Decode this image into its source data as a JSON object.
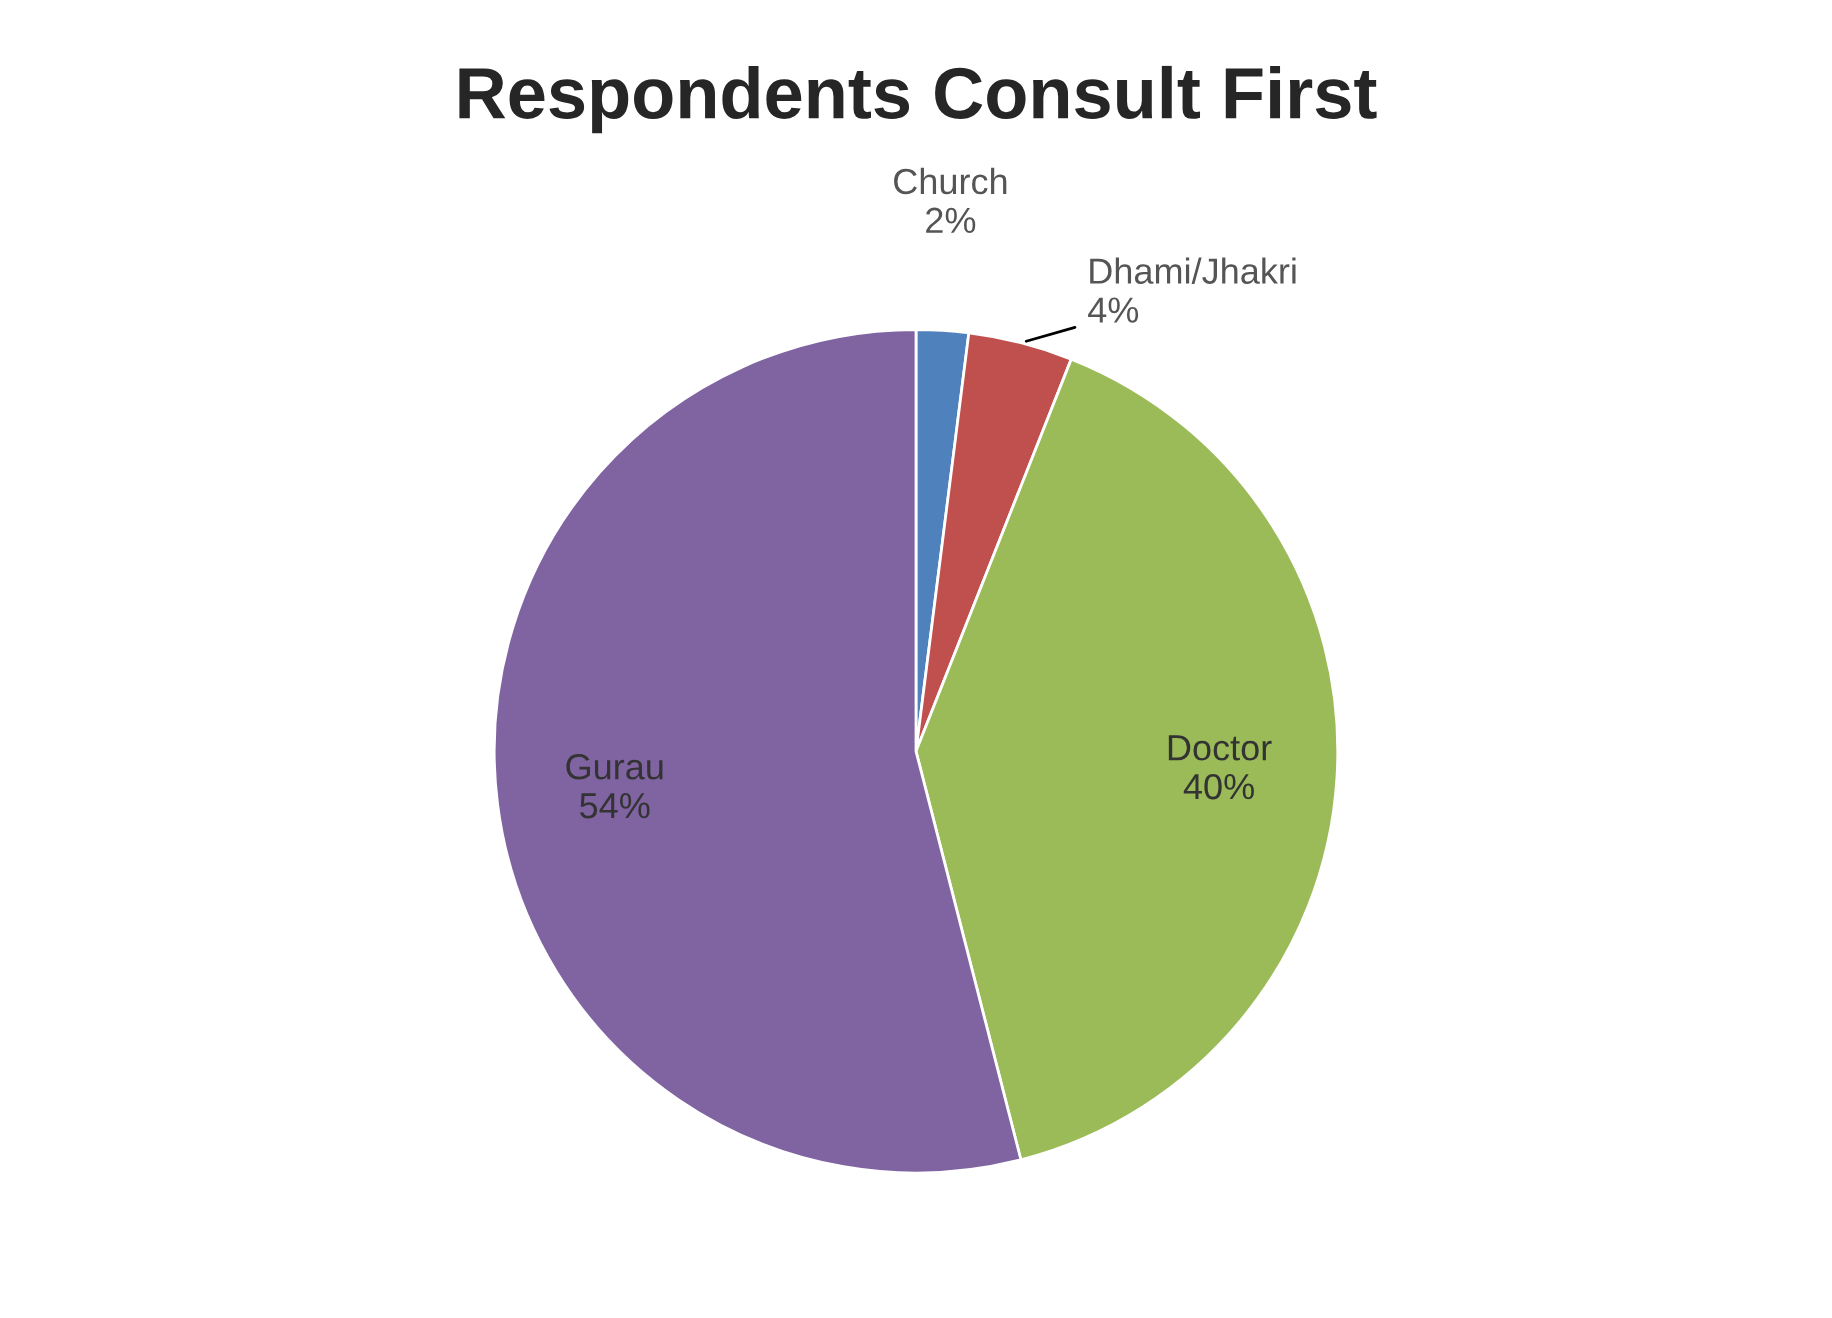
{
  "chart_data": {
    "type": "pie",
    "title": "Respondents Consult First",
    "categories": [
      "Church",
      "Dhami/Jhakri",
      "Doctor",
      "Gurau"
    ],
    "values": [
      2,
      4,
      40,
      54
    ],
    "value_labels": [
      "2%",
      "4%",
      "40%",
      "54%"
    ],
    "colors": [
      "#4f81bd",
      "#c0504d",
      "#9bbb59",
      "#8064a2"
    ]
  }
}
